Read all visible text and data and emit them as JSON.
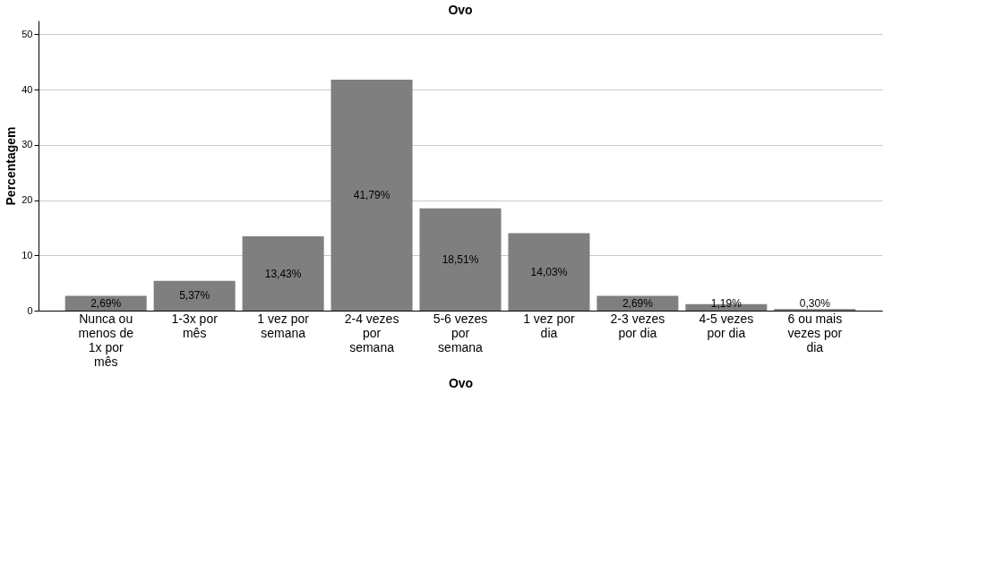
{
  "chart_data": {
    "type": "bar",
    "title": "Ovo",
    "xlabel": "Ovo",
    "ylabel": "Percentagem",
    "categories": [
      "Nunca ou menos de 1x por mês",
      "1-3x por mês",
      "1 vez por semana",
      "2-4 vezes por semana",
      "5-6 vezes por semana",
      "1 vez por dia",
      "2-3 vezes por dia",
      "4-5 vezes por dia",
      "6 ou mais vezes por dia"
    ],
    "values": [
      2.69,
      5.37,
      13.43,
      41.79,
      18.51,
      14.03,
      2.69,
      1.19,
      0.3
    ],
    "value_labels": [
      "2,69%",
      "5,37%",
      "13,43%",
      "41,79%",
      "18,51%",
      "14,03%",
      "2,69%",
      "1,19%",
      "0,30%"
    ],
    "color": "#7f7f7f",
    "ylim": [
      0,
      52.5
    ],
    "yticks": [
      0,
      10,
      20,
      30,
      40,
      50
    ],
    "grid": "y"
  }
}
